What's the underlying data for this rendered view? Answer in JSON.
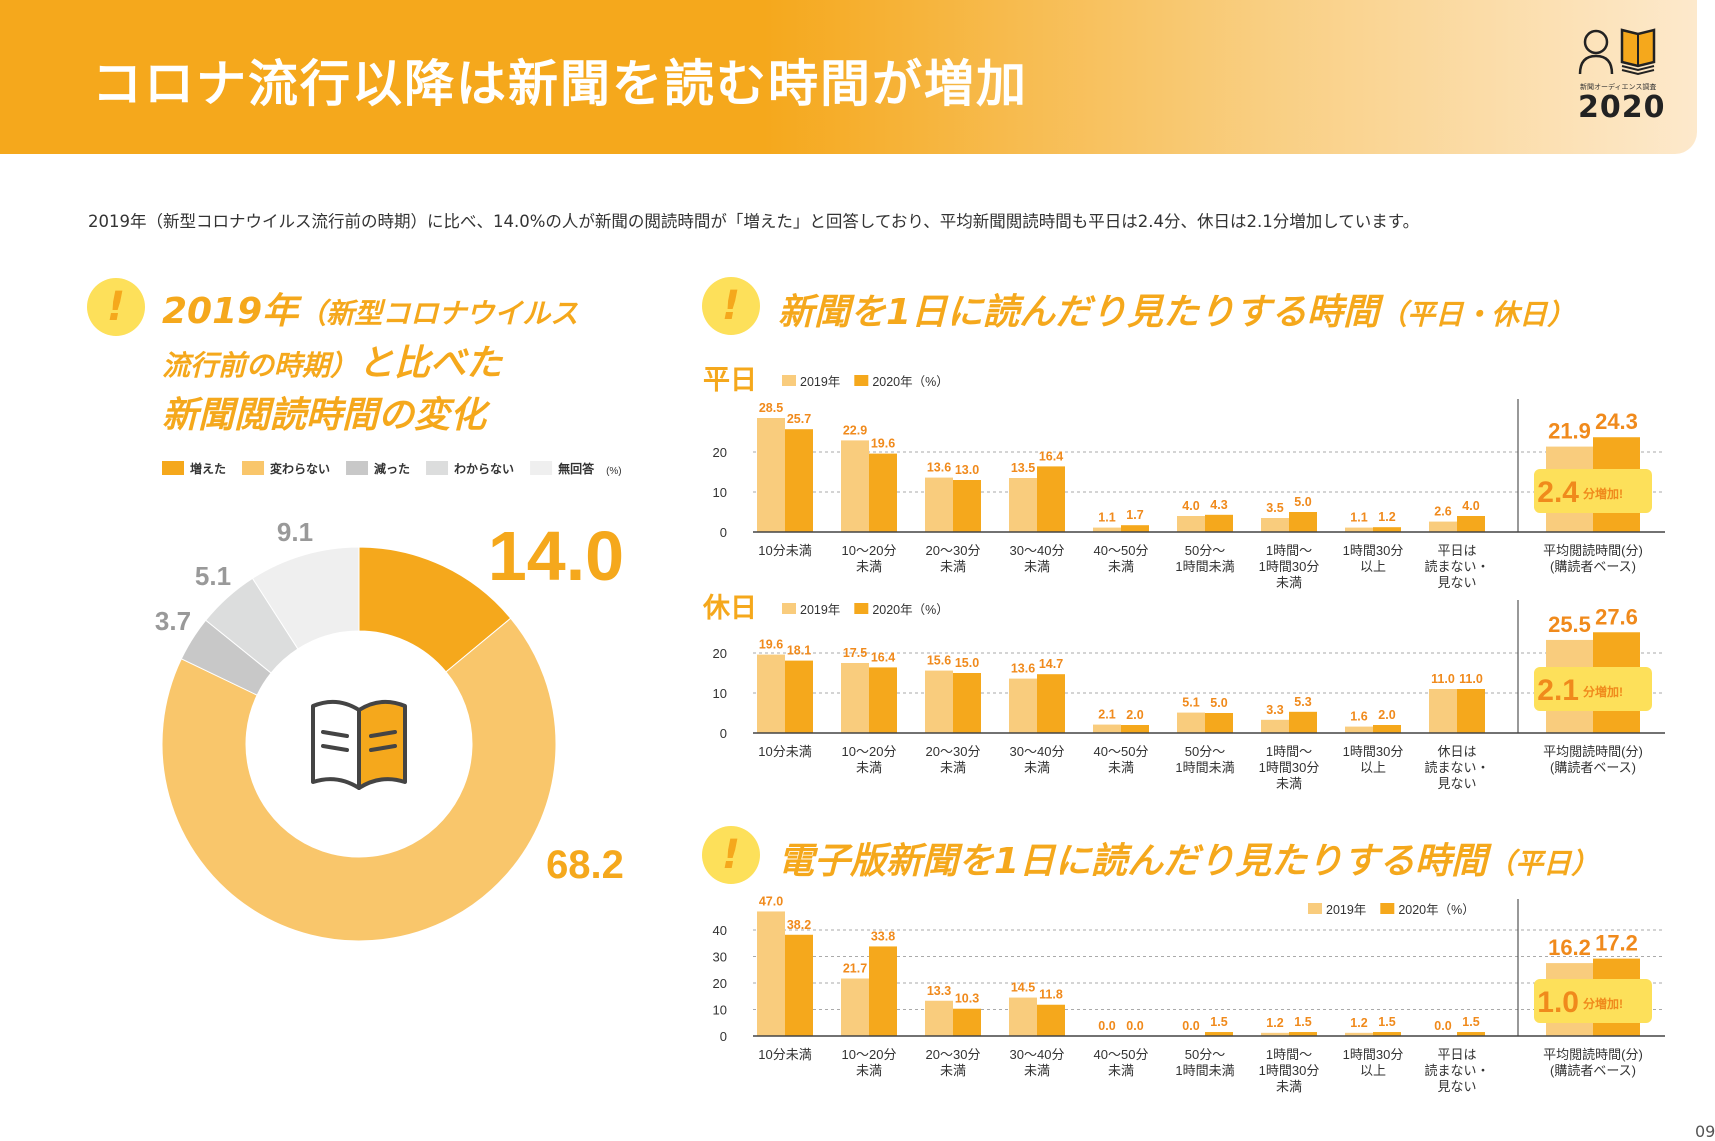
{
  "header": {
    "title": "コロナ流行以降は新聞を読む時間が増加",
    "logo_subtitle": "新聞オーディエンス調査",
    "logo_year": "2020",
    "accent": "#f5a81c"
  },
  "lead": "2019年（新型コロナウイルス流行前の時期）に比べ、14.0%の人が新聞の閲読時間が「増えた」と回答しており、平均新聞閲読時間も平日は2.4分、休日は2.1分増加しています。",
  "left_section": {
    "icon": "exclamation-icon",
    "heading": {
      "l1a": "2019年",
      "l1b": "（新型コロナウイルス",
      "l2a": "流行前の時期）",
      "l2b": "と比べた",
      "l3": "新聞閲読時間の変化"
    }
  },
  "right_section": {
    "heading_main": "新聞を1日に読んだり見たりする時間",
    "heading_sub": "（平日・休日）",
    "weekday_label": "平日",
    "holiday_label": "休日"
  },
  "digital_section": {
    "heading_main": "電子版新聞を1日に読んだり見たりする時間",
    "heading_sub": "（平日）"
  },
  "page_number": "09",
  "chart_data": [
    {
      "type": "pie",
      "style": "donut",
      "unit": "(%)",
      "legend_placement": "top",
      "center_icon": "open-book-icon",
      "labels": [
        "増えた",
        "変わらない",
        "減った",
        "わからない",
        "無回答"
      ],
      "values": [
        14.0,
        68.2,
        3.7,
        5.1,
        9.1
      ],
      "colors": [
        "#f5a81c",
        "#f9c66b",
        "#c8c8c8",
        "#dcdddd",
        "#efefef"
      ]
    },
    {
      "type": "bar",
      "id": "weekday",
      "legend": [
        "2019年",
        "2020年（%）"
      ],
      "colors": [
        "#f9cc7d",
        "#f5a81c"
      ],
      "ylim": [
        0,
        30
      ],
      "yticks": [
        0,
        10,
        20
      ],
      "grid": true,
      "categories": [
        [
          "10分未満"
        ],
        [
          "10～20分",
          "未満"
        ],
        [
          "20～30分",
          "未満"
        ],
        [
          "30～40分",
          "未満"
        ],
        [
          "40～50分",
          "未満"
        ],
        [
          "50分～",
          "1時間未満"
        ],
        [
          "1時間～",
          "1時間30分",
          "未満"
        ],
        [
          "1時間30分",
          "以上"
        ],
        [
          "平日は",
          "読まない・",
          "見ない"
        ]
      ],
      "series": [
        {
          "name": "2019年",
          "values": [
            28.5,
            22.9,
            13.6,
            13.5,
            1.1,
            4.0,
            3.5,
            1.1,
            2.6
          ]
        },
        {
          "name": "2020年",
          "values": [
            25.7,
            19.6,
            13.0,
            16.4,
            1.7,
            4.3,
            5.0,
            1.2,
            4.0
          ]
        }
      ],
      "average": {
        "label": [
          "平均閲読時間(分)",
          "(購読者ベース)"
        ],
        "values": [
          21.9,
          24.3
        ],
        "increase": "2.4",
        "increase_suffix": "分増加!"
      }
    },
    {
      "type": "bar",
      "id": "holiday",
      "legend": [
        "2019年",
        "2020年（%）"
      ],
      "colors": [
        "#f9cc7d",
        "#f5a81c"
      ],
      "ylim": [
        0,
        25
      ],
      "yticks": [
        0,
        10,
        20
      ],
      "grid": true,
      "categories": [
        [
          "10分未満"
        ],
        [
          "10～20分",
          "未満"
        ],
        [
          "20～30分",
          "未満"
        ],
        [
          "30～40分",
          "未満"
        ],
        [
          "40～50分",
          "未満"
        ],
        [
          "50分～",
          "1時間未満"
        ],
        [
          "1時間～",
          "1時間30分",
          "未満"
        ],
        [
          "1時間30分",
          "以上"
        ],
        [
          "休日は",
          "読まない・",
          "見ない"
        ]
      ],
      "series": [
        {
          "name": "2019年",
          "values": [
            19.6,
            17.5,
            15.6,
            13.6,
            2.1,
            5.1,
            3.3,
            1.6,
            11.0
          ]
        },
        {
          "name": "2020年",
          "values": [
            18.1,
            16.4,
            15.0,
            14.7,
            2.0,
            5.0,
            5.3,
            2.0,
            11.0
          ]
        }
      ],
      "average": {
        "label": [
          "平均閲読時間(分)",
          "(購読者ベース)"
        ],
        "values": [
          25.5,
          27.6
        ],
        "increase": "2.1",
        "increase_suffix": "分増加!"
      }
    },
    {
      "type": "bar",
      "id": "digital",
      "legend": [
        "2019年",
        "2020年（%）"
      ],
      "colors": [
        "#f9cc7d",
        "#f5a81c"
      ],
      "ylim": [
        0,
        50
      ],
      "yticks": [
        0,
        10,
        20,
        30,
        40
      ],
      "grid": true,
      "categories": [
        [
          "10分未満"
        ],
        [
          "10～20分",
          "未満"
        ],
        [
          "20～30分",
          "未満"
        ],
        [
          "30～40分",
          "未満"
        ],
        [
          "40～50分",
          "未満"
        ],
        [
          "50分～",
          "1時間未満"
        ],
        [
          "1時間～",
          "1時間30分",
          "未満"
        ],
        [
          "1時間30分",
          "以上"
        ],
        [
          "平日は",
          "読まない・",
          "見ない"
        ]
      ],
      "series": [
        {
          "name": "2019年",
          "values": [
            47.0,
            21.7,
            13.3,
            14.5,
            0.0,
            0.0,
            1.2,
            1.2,
            0.0
          ]
        },
        {
          "name": "2020年",
          "values": [
            38.2,
            33.8,
            10.3,
            11.8,
            0.0,
            1.5,
            1.5,
            1.5,
            1.5
          ]
        }
      ],
      "average": {
        "label": [
          "平均閲読時間(分)",
          "(購読者ベース)"
        ],
        "values": [
          16.2,
          17.2
        ],
        "increase": "1.0",
        "increase_suffix": "分増加!"
      }
    }
  ]
}
